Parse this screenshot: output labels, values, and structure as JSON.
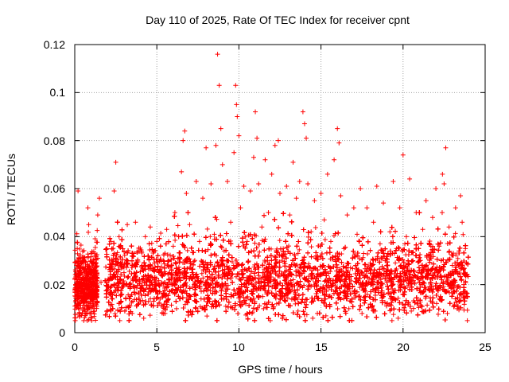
{
  "chart_data": {
    "type": "scatter",
    "title": "Day 110 of 2025, Rate Of TEC Index for receiver cpnt",
    "xlabel": "GPS time / hours",
    "ylabel": "ROTI / TECUs",
    "xlim": [
      0,
      25
    ],
    "ylim": [
      0,
      0.12
    ],
    "xticks": [
      "0",
      "5",
      "10",
      "15",
      "20",
      "25"
    ],
    "yticks": [
      "0",
      "0.02",
      "0.04",
      "0.06",
      "0.08",
      "0.1",
      "0.12"
    ],
    "grid": true,
    "marker": "+",
    "color": "#ff0000",
    "series": [
      {
        "name": "ROTI",
        "points": [
          [
            0.05,
            0.02
          ],
          [
            0.1,
            0.028
          ],
          [
            0.15,
            0.035
          ],
          [
            0.2,
            0.059
          ],
          [
            0.25,
            0.012
          ],
          [
            0.3,
            0.024
          ],
          [
            0.4,
            0.017
          ],
          [
            0.5,
            0.03
          ],
          [
            0.6,
            0.01
          ],
          [
            0.7,
            0.022
          ],
          [
            0.8,
            0.052
          ],
          [
            0.9,
            0.019
          ],
          [
            1.0,
            0.033
          ],
          [
            1.1,
            0.013
          ],
          [
            1.2,
            0.026
          ],
          [
            1.3,
            0.018
          ],
          [
            1.4,
            0.031
          ],
          [
            1.5,
            0.056
          ],
          [
            1.6,
            0.021
          ],
          [
            1.4,
            0.049
          ],
          [
            0.85,
            0.045
          ],
          [
            2.0,
            0.018
          ],
          [
            2.1,
            0.027
          ],
          [
            2.2,
            0.038
          ],
          [
            2.3,
            0.014
          ],
          [
            2.4,
            0.059
          ],
          [
            2.5,
            0.071
          ],
          [
            2.6,
            0.022
          ],
          [
            2.7,
            0.04
          ],
          [
            2.8,
            0.016
          ],
          [
            3.0,
            0.025
          ],
          [
            3.2,
            0.045
          ],
          [
            3.4,
            0.019
          ],
          [
            3.6,
            0.033
          ],
          [
            3.7,
            0.046
          ],
          [
            3.9,
            0.012
          ],
          [
            4.1,
            0.028
          ],
          [
            4.3,
            0.04
          ],
          [
            4.5,
            0.017
          ],
          [
            4.6,
            0.044
          ],
          [
            4.8,
            0.026
          ],
          [
            5.0,
            0.038
          ],
          [
            5.2,
            0.014
          ],
          [
            5.4,
            0.03
          ],
          [
            5.6,
            0.043
          ],
          [
            5.8,
            0.021
          ],
          [
            6.0,
            0.036
          ],
          [
            6.1,
            0.05
          ],
          [
            6.3,
            0.026
          ],
          [
            6.5,
            0.067
          ],
          [
            6.6,
            0.08
          ],
          [
            6.7,
            0.084
          ],
          [
            6.8,
            0.058
          ],
          [
            6.9,
            0.031
          ],
          [
            7.0,
            0.045
          ],
          [
            7.2,
            0.019
          ],
          [
            7.4,
            0.063
          ],
          [
            7.6,
            0.038
          ],
          [
            7.8,
            0.056
          ],
          [
            8.0,
            0.077
          ],
          [
            8.1,
            0.022
          ],
          [
            8.3,
            0.062
          ],
          [
            8.5,
            0.041
          ],
          [
            8.6,
            0.078
          ],
          [
            8.7,
            0.116
          ],
          [
            8.8,
            0.103
          ],
          [
            8.9,
            0.085
          ],
          [
            9.0,
            0.07
          ],
          [
            9.1,
            0.034
          ],
          [
            9.3,
            0.063
          ],
          [
            9.5,
            0.046
          ],
          [
            9.7,
            0.075
          ],
          [
            9.8,
            0.103
          ],
          [
            9.85,
            0.095
          ],
          [
            9.9,
            0.09
          ],
          [
            10.0,
            0.082
          ],
          [
            10.1,
            0.052
          ],
          [
            10.3,
            0.061
          ],
          [
            10.5,
            0.038
          ],
          [
            10.7,
            0.059
          ],
          [
            10.9,
            0.073
          ],
          [
            11.0,
            0.092
          ],
          [
            11.1,
            0.081
          ],
          [
            11.2,
            0.062
          ],
          [
            11.4,
            0.044
          ],
          [
            11.6,
            0.072
          ],
          [
            11.8,
            0.05
          ],
          [
            12.0,
            0.066
          ],
          [
            12.2,
            0.078
          ],
          [
            12.4,
            0.08
          ],
          [
            12.5,
            0.058
          ],
          [
            12.7,
            0.035
          ],
          [
            12.9,
            0.061
          ],
          [
            13.1,
            0.049
          ],
          [
            13.3,
            0.071
          ],
          [
            13.5,
            0.056
          ],
          [
            13.7,
            0.063
          ],
          [
            13.9,
            0.092
          ],
          [
            14.0,
            0.087
          ],
          [
            14.1,
            0.081
          ],
          [
            14.2,
            0.062
          ],
          [
            14.4,
            0.042
          ],
          [
            14.6,
            0.055
          ],
          [
            14.8,
            0.032
          ],
          [
            15.0,
            0.058
          ],
          [
            15.2,
            0.047
          ],
          [
            15.4,
            0.066
          ],
          [
            15.6,
            0.038
          ],
          [
            15.8,
            0.072
          ],
          [
            16.0,
            0.085
          ],
          [
            16.1,
            0.079
          ],
          [
            16.2,
            0.057
          ],
          [
            16.4,
            0.035
          ],
          [
            16.6,
            0.049
          ],
          [
            16.8,
            0.027
          ],
          [
            17.0,
            0.052
          ],
          [
            17.2,
            0.041
          ],
          [
            17.4,
            0.06
          ],
          [
            17.6,
            0.033
          ],
          [
            17.8,
            0.052
          ],
          [
            18.0,
            0.029
          ],
          [
            18.2,
            0.046
          ],
          [
            18.4,
            0.061
          ],
          [
            18.6,
            0.037
          ],
          [
            18.8,
            0.054
          ],
          [
            19.0,
            0.028
          ],
          [
            19.2,
            0.042
          ],
          [
            19.4,
            0.063
          ],
          [
            19.6,
            0.035
          ],
          [
            19.8,
            0.052
          ],
          [
            20.0,
            0.074
          ],
          [
            20.2,
            0.04
          ],
          [
            20.4,
            0.064
          ],
          [
            20.6,
            0.03
          ],
          [
            20.8,
            0.05
          ],
          [
            21.0,
            0.026
          ],
          [
            21.2,
            0.043
          ],
          [
            21.4,
            0.055
          ],
          [
            21.6,
            0.032
          ],
          [
            21.8,
            0.048
          ],
          [
            22.0,
            0.06
          ],
          [
            22.2,
            0.036
          ],
          [
            22.4,
            0.066
          ],
          [
            22.5,
            0.062
          ],
          [
            22.6,
            0.077
          ],
          [
            22.8,
            0.044
          ],
          [
            23.0,
            0.028
          ],
          [
            23.2,
            0.052
          ],
          [
            23.4,
            0.034
          ],
          [
            23.5,
            0.057
          ],
          [
            23.6,
            0.046
          ],
          [
            23.7,
            0.02
          ],
          [
            23.8,
            0.035
          ],
          [
            23.9,
            0.024
          ],
          [
            3.5,
            0.008
          ],
          [
            6.2,
            0.01
          ],
          [
            7.5,
            0.009
          ],
          [
            9.2,
            0.011
          ],
          [
            10.8,
            0.008
          ],
          [
            12.3,
            0.012
          ],
          [
            13.6,
            0.009
          ],
          [
            15.3,
            0.007
          ],
          [
            16.7,
            0.01
          ],
          [
            18.3,
            0.009
          ],
          [
            19.7,
            0.006
          ],
          [
            21.1,
            0.011
          ],
          [
            22.7,
            0.008
          ],
          [
            23.3,
            0.01
          ],
          [
            4.2,
            0.006
          ],
          [
            5.5,
            0.008
          ],
          [
            8.4,
            0.012
          ],
          [
            11.5,
            0.01
          ],
          [
            14.5,
            0.006
          ],
          [
            17.5,
            0.008
          ],
          [
            20.5,
            0.009
          ],
          [
            2.2,
            0.009
          ],
          [
            0.3,
            0.007
          ],
          [
            1.0,
            0.008
          ]
        ]
      }
    ],
    "dense_bands": [
      {
        "x": [
          0,
          1.4
        ],
        "median": 0.019,
        "spread": 0.011
      },
      {
        "x": [
          1.85,
          24
        ],
        "median": 0.022,
        "spread": 0.013
      }
    ]
  }
}
